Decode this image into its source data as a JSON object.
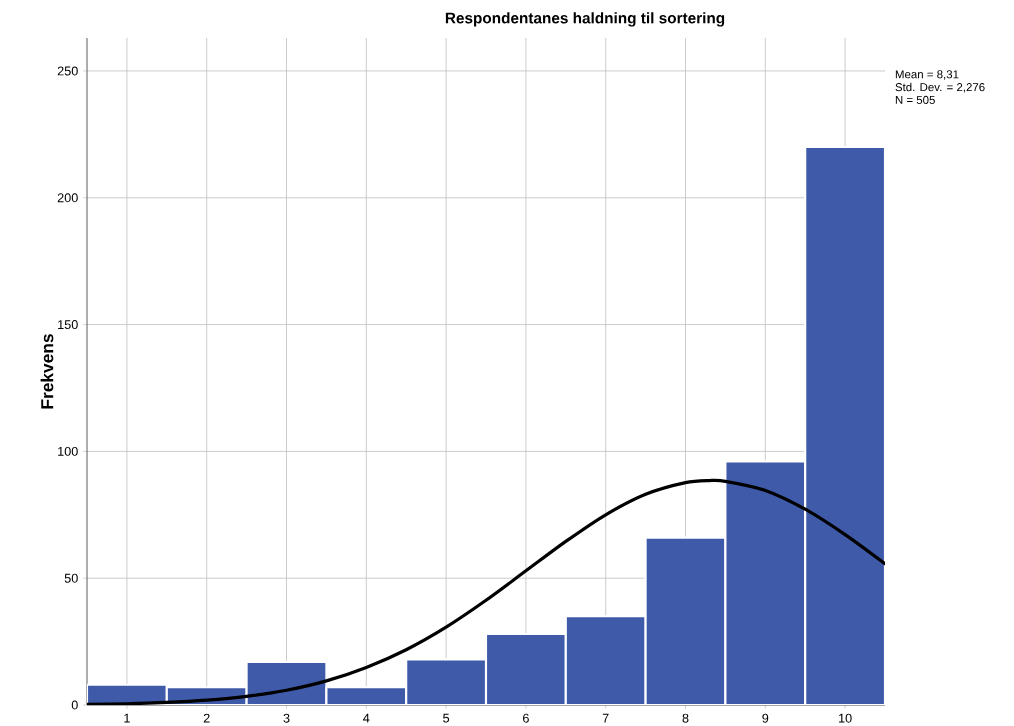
{
  "chart_data": {
    "type": "histogram",
    "title": "Respondentanes haldning til sortering",
    "ylabel": "Frekvens",
    "bins": [
      0.5,
      1.5,
      2.5,
      3.5,
      4.5,
      5.5,
      6.5,
      7.5,
      8.5,
      9.5,
      10.5
    ],
    "xlim": [
      0.5,
      10.5
    ],
    "xticks": [
      1,
      2,
      3,
      4,
      5,
      6,
      7,
      8,
      9,
      10
    ],
    "ylim": [
      0,
      263
    ],
    "yticks": [
      0,
      50,
      100,
      150,
      200,
      250
    ],
    "grid": true,
    "series": [
      {
        "color": "#3f5aa8",
        "values": [
          8,
          7,
          17,
          7,
          18,
          28,
          35,
          66,
          96,
          220
        ]
      },
      {
        "type": "line",
        "color": "#000000",
        "marker": "none",
        "line_style": "solid",
        "x": [
          0.5,
          1,
          1.5,
          2,
          2.5,
          3,
          3.5,
          4,
          4.5,
          5,
          5.5,
          6,
          6.5,
          7,
          7.5,
          8,
          8.3,
          8.5,
          9,
          9.5,
          10,
          10.5
        ],
        "values": [
          0.3,
          0.5,
          1,
          1.9,
          3.4,
          5.8,
          9.5,
          14.8,
          21.8,
          30.7,
          41.3,
          52.9,
          64.5,
          75,
          83.1,
          87.7,
          88.5,
          88.2,
          84.6,
          77.2,
          67.2,
          55.7
        ]
      }
    ],
    "annotations": [
      "Mean = 8,31",
      "Std. Dev. = 2,276",
      "N = 505"
    ]
  }
}
